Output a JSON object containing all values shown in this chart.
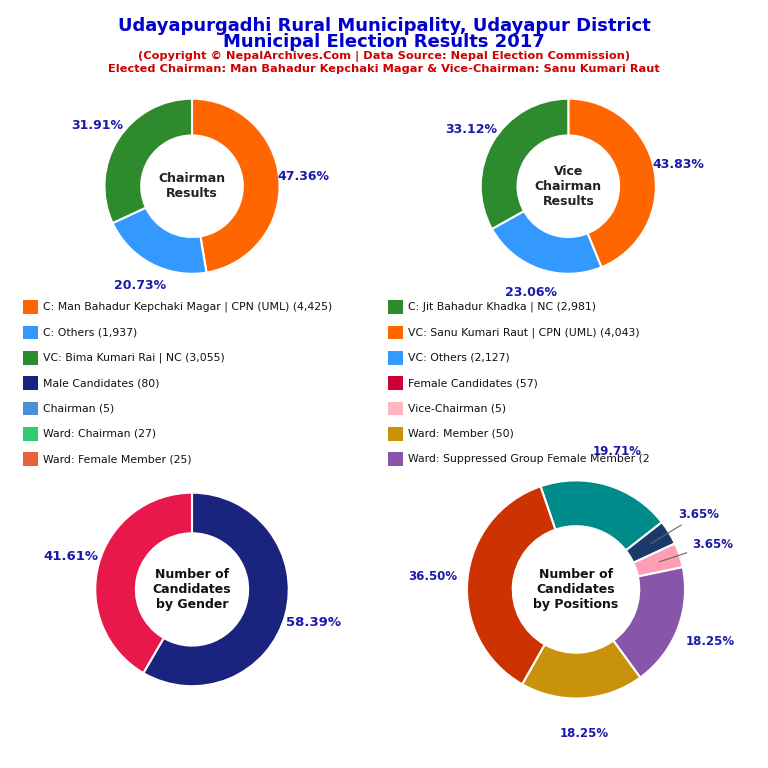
{
  "title_line1": "Udayapurgadhi Rural Municipality, Udayapur District",
  "title_line2": "Municipal Election Results 2017",
  "subtitle1": "(Copyright © NepalArchives.Com | Data Source: Nepal Election Commission)",
  "subtitle2": "Elected Chairman: Man Bahadur Kepchaki Magar & Vice-Chairman: Sanu Kumari Raut",
  "title_color": "#0000cc",
  "subtitle_color": "#cc0000",
  "pct_label_color": "#1a1aaa",
  "chairman_values": [
    47.36,
    20.73,
    31.91
  ],
  "chairman_colors": [
    "#ff6600",
    "#3399ff",
    "#2d8a2d"
  ],
  "chairman_label": "Chairman\nResults",
  "vc_values": [
    43.83,
    23.06,
    33.12
  ],
  "vc_colors": [
    "#ff6600",
    "#3399ff",
    "#2d8a2d"
  ],
  "vc_label": "Vice\nChairman\nResults",
  "gender_values": [
    58.39,
    41.61
  ],
  "gender_colors": [
    "#1a237e",
    "#e8194a"
  ],
  "gender_label": "Number of\nCandidates\nby Gender",
  "positions_values": [
    19.71,
    3.65,
    3.65,
    18.25,
    18.25,
    36.5
  ],
  "positions_colors": [
    "#008b8b",
    "#1a3a6b",
    "#ff9eb5",
    "#8855aa",
    "#c8930a",
    "#cc3300"
  ],
  "positions_label": "Number of\nCandidates\nby Positions",
  "legend_items_col1": [
    {
      "label": "C: Man Bahadur Kepchaki Magar | CPN (UML) (4,425)",
      "color": "#ff6600"
    },
    {
      "label": "C: Others (1,937)",
      "color": "#3399ff"
    },
    {
      "label": "VC: Bima Kumari Rai | NC (3,055)",
      "color": "#2d8a2d"
    },
    {
      "label": "Male Candidates (80)",
      "color": "#1a237e"
    },
    {
      "label": "Chairman (5)",
      "color": "#4a90d9"
    },
    {
      "label": "Ward: Chairman (27)",
      "color": "#2ecc71"
    },
    {
      "label": "Ward: Female Member (25)",
      "color": "#e8613a"
    }
  ],
  "legend_items_col2": [
    {
      "label": "C: Jit Bahadur Khadka | NC (2,981)",
      "color": "#2d8a2d"
    },
    {
      "label": "VC: Sanu Kumari Raut | CPN (UML) (4,043)",
      "color": "#ff6600"
    },
    {
      "label": "VC: Others (2,127)",
      "color": "#3399ff"
    },
    {
      "label": "Female Candidates (57)",
      "color": "#cc0033"
    },
    {
      "label": "Vice-Chairman (5)",
      "color": "#ffb6c1"
    },
    {
      "label": "Ward: Member (50)",
      "color": "#c8930a"
    },
    {
      "label": "Ward: Suppressed Group Female Member (2",
      "color": "#8855aa"
    }
  ],
  "background_color": "#ffffff",
  "donut_width": 0.42
}
